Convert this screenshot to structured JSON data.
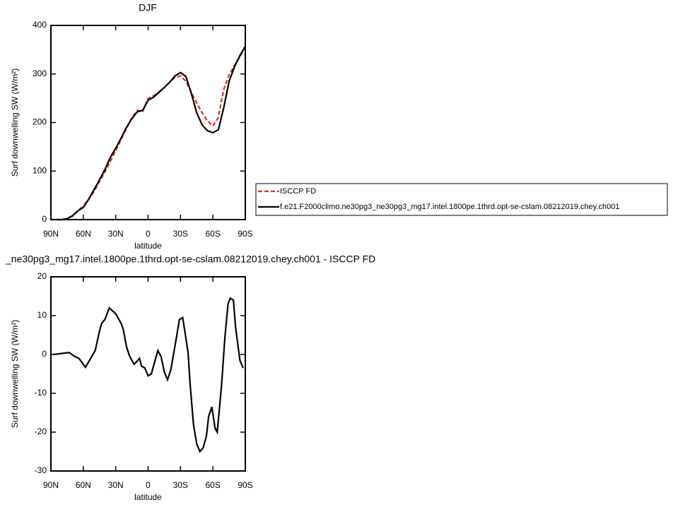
{
  "chart_data": [
    {
      "type": "line",
      "title": "DJF",
      "xlabel": "latitude",
      "ylabel": "Surf downwelling SW (W/m²)",
      "x": [
        90,
        85,
        80,
        75,
        70,
        65,
        60,
        55,
        50,
        45,
        40,
        35,
        30,
        25,
        20,
        15,
        10,
        5,
        0,
        -5,
        -10,
        -15,
        -20,
        -25,
        -30,
        -35,
        -40,
        -45,
        -50,
        -55,
        -60,
        -65,
        -70,
        -75,
        -80,
        -85,
        -90
      ],
      "series": [
        {
          "name": "ISCCP FD",
          "color": "#e8272a",
          "linestyle": "dashed",
          "values": [
            0,
            0,
            0,
            2,
            7,
            18,
            28,
            42,
            58,
            78,
            98,
            120,
            142,
            165,
            188,
            210,
            225,
            223,
            250,
            255,
            263,
            272,
            283,
            293,
            296,
            285,
            262,
            240,
            220,
            203,
            193,
            210,
            268,
            298,
            318,
            335,
            357
          ]
        },
        {
          "name": "f.e21.F2000climo.ne30pg3_ne30pg3_mg17.intel.1800pe.1thrd.opt-se-cslam.08212019.chey.ch001",
          "color": "#000000",
          "linestyle": "solid",
          "values": [
            0,
            0,
            0,
            2,
            8,
            18,
            25,
            42,
            62,
            82,
            103,
            128,
            147,
            168,
            190,
            208,
            222,
            225,
            246,
            252,
            262,
            272,
            283,
            296,
            303,
            295,
            260,
            220,
            195,
            183,
            179,
            185,
            230,
            285,
            315,
            338,
            357
          ]
        }
      ],
      "xlim": [
        90,
        -90
      ],
      "xticks": [
        {
          "value": 90,
          "label": "90N"
        },
        {
          "value": 60,
          "label": "60N"
        },
        {
          "value": 30,
          "label": "30N"
        },
        0,
        {
          "value": -30,
          "label": "30S"
        },
        {
          "value": -60,
          "label": "60S"
        },
        {
          "value": -90,
          "label": "90S"
        }
      ],
      "ylim": [
        0,
        400
      ],
      "yticks": [
        0,
        100,
        200,
        300,
        400
      ],
      "legend": "right"
    },
    {
      "type": "line",
      "title": "_ne30pg3_mg17.intel.1800pe.1thrd.opt-se-cslam.08212019.chey.ch001 - ISCCP FD",
      "xlabel": "latitude",
      "ylabel": "Surf downwelling SW (W/m²)",
      "x": [
        88,
        73,
        68,
        64,
        58,
        49,
        45,
        43,
        40,
        36,
        30,
        25,
        23,
        20,
        17,
        13,
        11,
        8,
        6,
        3,
        0,
        -3,
        -9,
        -12,
        -15,
        -18,
        -21,
        -26,
        -29,
        -32,
        -34,
        -37,
        -39,
        -42,
        -45,
        -48,
        -51,
        -54,
        -56,
        -59,
        -62,
        -64,
        -68,
        -71,
        -74,
        -76,
        -79,
        -81,
        -85,
        -88
      ],
      "values": [
        0,
        0.5,
        -0.5,
        -1,
        -3.3,
        1,
        6,
        8,
        9,
        12,
        10.5,
        8,
        6.5,
        2,
        -0.5,
        -2.5,
        -2,
        -1,
        -3,
        -3.5,
        -5.5,
        -5,
        1,
        -0.5,
        -4.5,
        -6.5,
        -4,
        4,
        9,
        9.5,
        6,
        0.5,
        -8,
        -18,
        -23,
        -25,
        -24,
        -21,
        -16,
        -13.5,
        -19,
        -20,
        -8,
        4,
        13,
        14.5,
        14,
        7,
        -1.5,
        -3.5
      ],
      "color": "#000000",
      "xlim": [
        90,
        -90
      ],
      "xticks": [
        {
          "value": 90,
          "label": "90N"
        },
        {
          "value": 60,
          "label": "60N"
        },
        {
          "value": 30,
          "label": "30N"
        },
        0,
        {
          "value": -30,
          "label": "30S"
        },
        {
          "value": -60,
          "label": "60S"
        },
        {
          "value": -90,
          "label": "90S"
        }
      ],
      "ylim": [
        -30,
        20
      ],
      "yticks": [
        -30,
        -20,
        -10,
        0,
        10,
        20
      ]
    }
  ]
}
